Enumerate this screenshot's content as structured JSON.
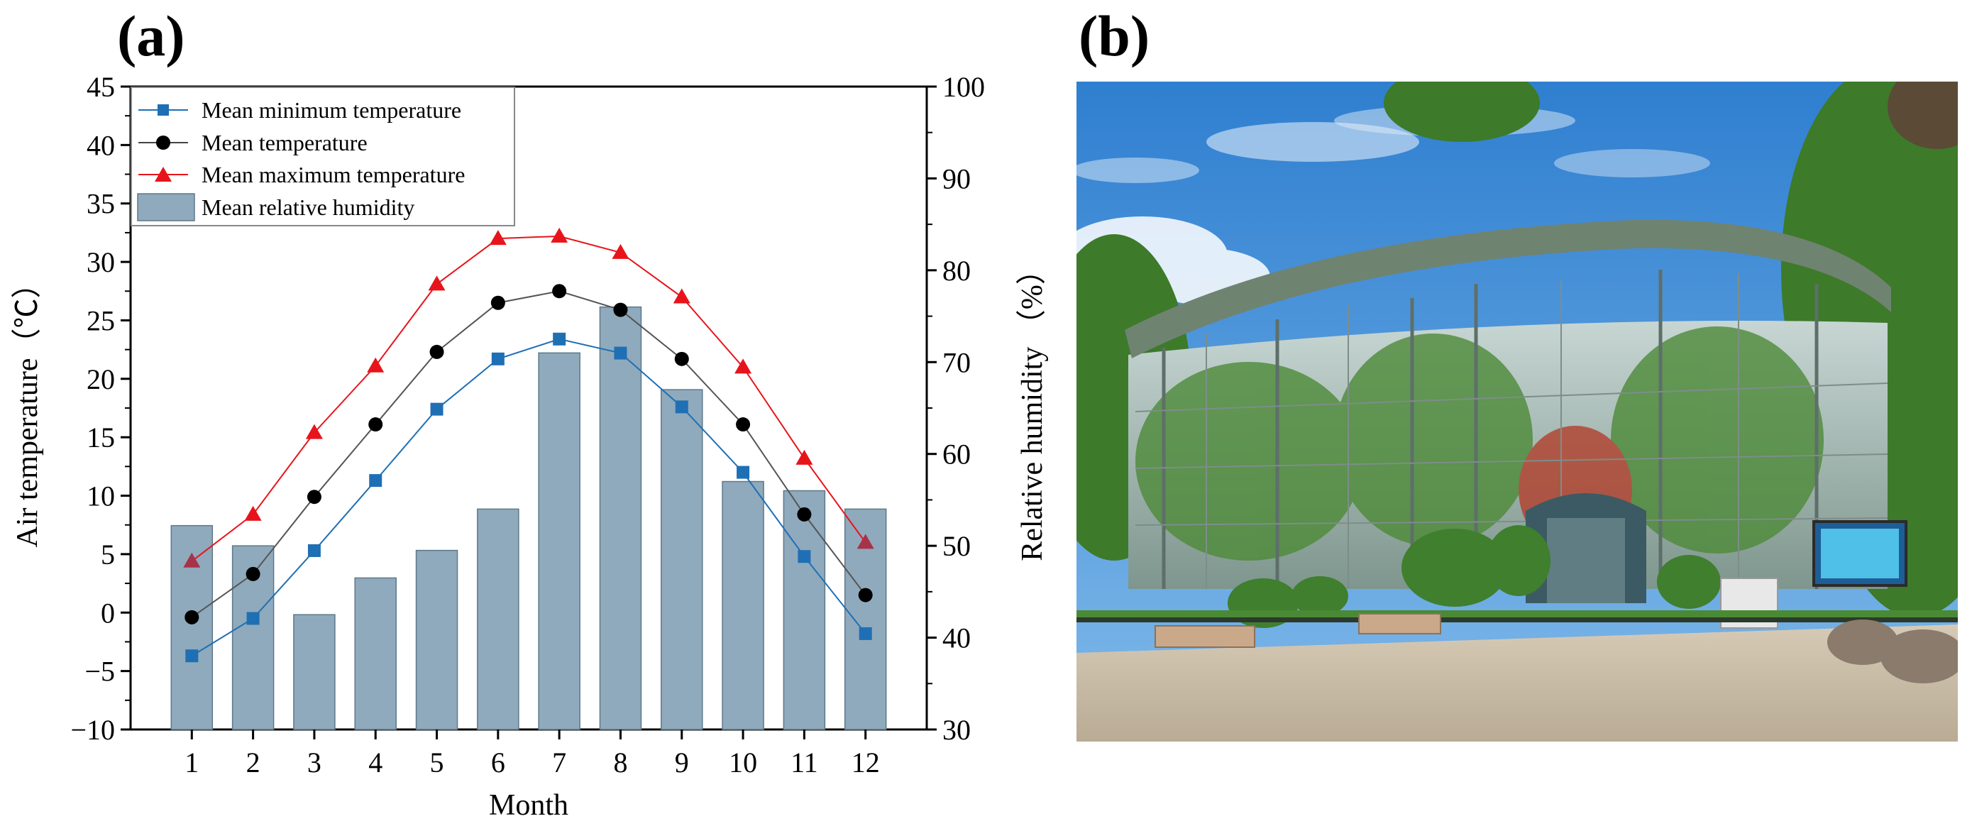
{
  "panels": {
    "a_label": "(a)",
    "b_label": "(b)"
  },
  "chart_data": {
    "type": "bar+line",
    "categories": [
      "1",
      "2",
      "3",
      "4",
      "5",
      "6",
      "7",
      "8",
      "9",
      "10",
      "11",
      "12"
    ],
    "xlabel": "Month",
    "ylabel_left": "Air temperature（℃）",
    "ylabel_right": "Relative humidity （%）",
    "ylim_left": [
      -10,
      45
    ],
    "ylim_right": [
      30,
      100
    ],
    "yticks_left": [
      "−10",
      "−5",
      "0",
      "5",
      "10",
      "15",
      "20",
      "25",
      "30",
      "35",
      "40",
      "45"
    ],
    "yticks_right": [
      "30",
      "40",
      "50",
      "60",
      "70",
      "80",
      "90",
      "100"
    ],
    "series": [
      {
        "name": "Mean minimum temperature",
        "kind": "line",
        "axis": "left",
        "marker": "square",
        "color": "#1f6fb5",
        "values": [
          -3.7,
          -0.5,
          5.3,
          11.3,
          17.4,
          21.7,
          23.4,
          22.2,
          17.6,
          12.0,
          4.8,
          -1.8
        ]
      },
      {
        "name": "Mean temperature",
        "kind": "line",
        "axis": "left",
        "marker": "circle",
        "color": "#000000",
        "values": [
          -0.4,
          3.3,
          9.9,
          16.1,
          22.3,
          26.5,
          27.5,
          25.9,
          21.7,
          16.1,
          8.4,
          1.5
        ]
      },
      {
        "name": "Mean maximum temperature",
        "kind": "line",
        "axis": "left",
        "marker": "triangle",
        "color": "#e8141b",
        "values": [
          4.4,
          8.4,
          15.4,
          21.1,
          28.1,
          32.0,
          32.2,
          30.8,
          27.0,
          21.0,
          13.2,
          6.0
        ]
      },
      {
        "name": "Mean relative humidity",
        "kind": "bar",
        "axis": "right",
        "color": "#8faabc",
        "values": [
          52.2,
          50.0,
          42.5,
          46.5,
          49.5,
          54.0,
          71.0,
          76.0,
          67.0,
          57.0,
          56.0,
          54.0
        ]
      }
    ],
    "legend_position": "top-left"
  },
  "photo": {
    "sky_color": "#3d8fd8",
    "glass_color": "#b6c8c4",
    "roof_color": "#6f8371",
    "foliage_color": "#3f7f2e",
    "pavement_color": "#c9bca7"
  }
}
